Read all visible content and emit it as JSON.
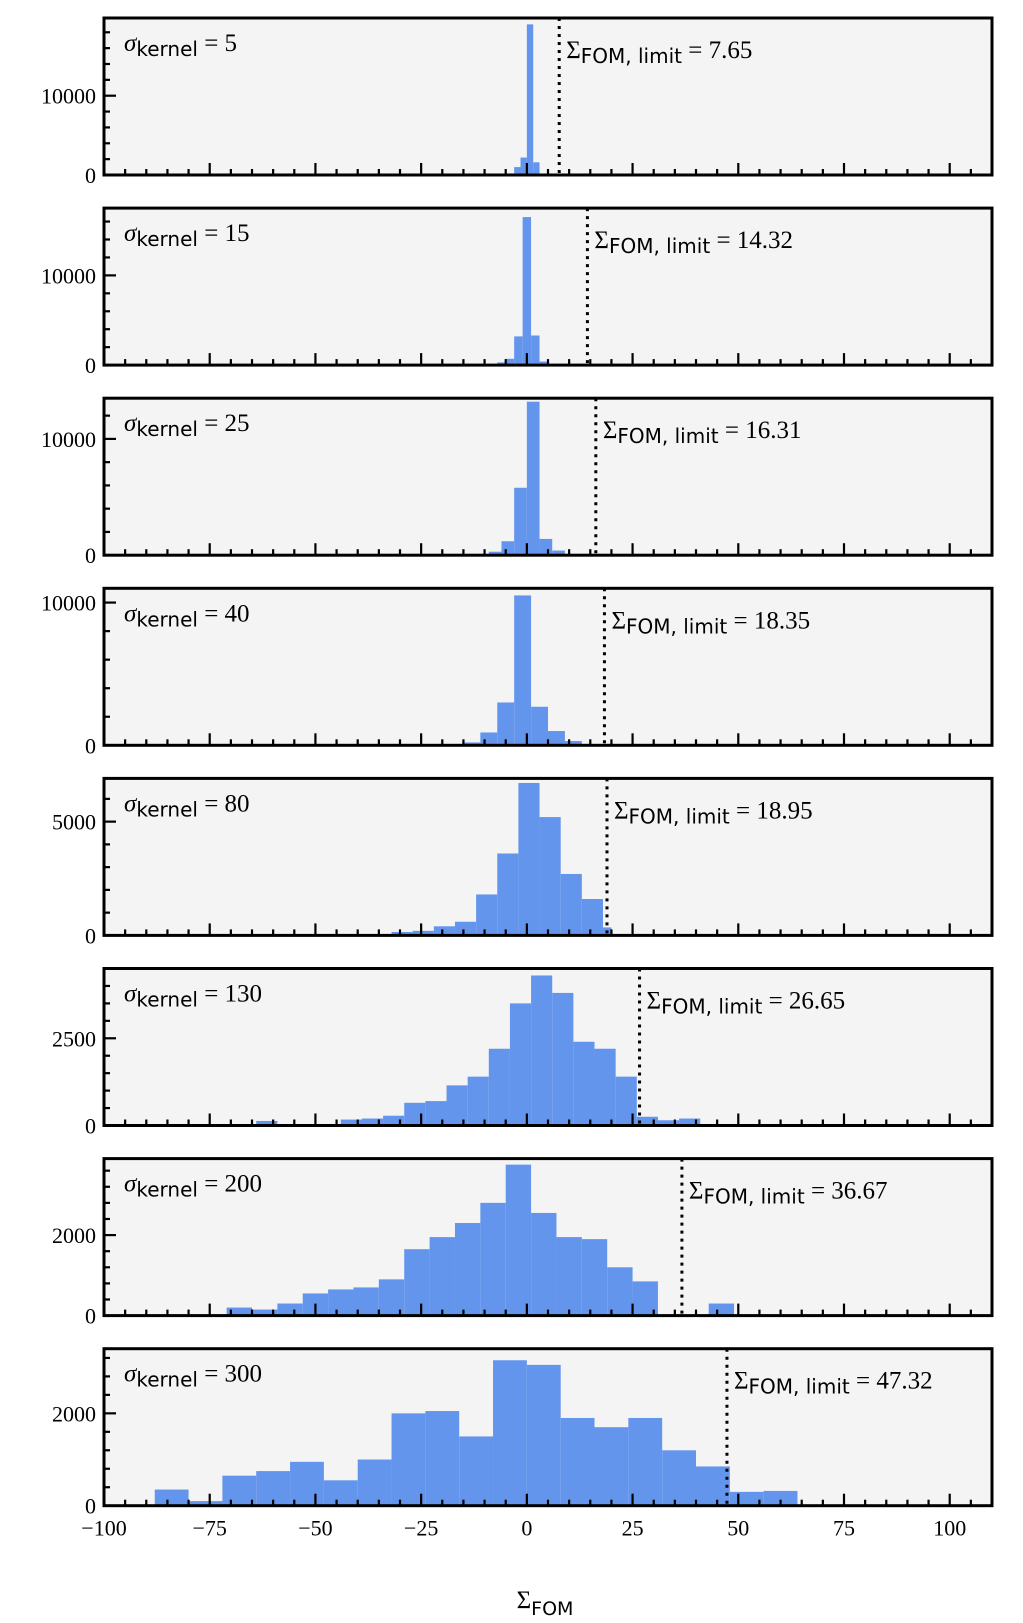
{
  "figure": {
    "xlabel_main": "Σ",
    "xlabel_sub": "FOM"
  },
  "colors": {
    "bar": "#6495ED",
    "panel_bg": "#F4F4F4",
    "frame": "#000000",
    "limit_line": "#000000"
  },
  "chart_data": [
    {
      "type": "bar",
      "kernel_label": {
        "sym": "σ",
        "sub": "kernel",
        "rest": " = 5"
      },
      "limit_label": {
        "sym": "Σ",
        "sub": "FOM, limit",
        "rest": " = 7.65"
      },
      "limit": 7.65,
      "xlim": [
        -100,
        110
      ],
      "ylim": [
        0,
        19800
      ],
      "yticks": [
        0,
        10000
      ],
      "bin_edges": [
        -3,
        -1.5,
        0,
        1.5,
        3
      ],
      "counts": [
        1000,
        2200,
        19000,
        1600
      ]
    },
    {
      "type": "bar",
      "kernel_label": {
        "sym": "σ",
        "sub": "kernel",
        "rest": " = 15"
      },
      "limit_label": {
        "sym": "Σ",
        "sub": "FOM, limit",
        "rest": " = 14.32"
      },
      "limit": 14.32,
      "xlim": [
        -100,
        110
      ],
      "ylim": [
        0,
        17500
      ],
      "yticks": [
        0,
        10000
      ],
      "bin_edges": [
        -7,
        -5,
        -3,
        -1,
        1,
        3,
        5,
        7
      ],
      "counts": [
        300,
        700,
        3200,
        16500,
        3300,
        400,
        100
      ]
    },
    {
      "type": "bar",
      "kernel_label": {
        "sym": "σ",
        "sub": "kernel",
        "rest": " = 25"
      },
      "limit_label": {
        "sym": "Σ",
        "sub": "FOM, limit",
        "rest": " = 16.31"
      },
      "limit": 16.31,
      "xlim": [
        -100,
        110
      ],
      "ylim": [
        0,
        13500
      ],
      "yticks": [
        0,
        10000
      ],
      "bin_edges": [
        -9,
        -6,
        -3,
        0,
        3,
        6,
        9
      ],
      "counts": [
        300,
        1200,
        5800,
        13200,
        1400,
        400
      ]
    },
    {
      "type": "bar",
      "kernel_label": {
        "sym": "σ",
        "sub": "kernel",
        "rest": " = 40"
      },
      "limit_label": {
        "sym": "Σ",
        "sub": "FOM, limit",
        "rest": " = 18.35"
      },
      "limit": 18.35,
      "xlim": [
        -100,
        110
      ],
      "ylim": [
        0,
        11000
      ],
      "yticks": [
        0,
        10000
      ],
      "bin_edges": [
        -15,
        -11,
        -7,
        -3,
        1,
        5,
        9,
        13
      ],
      "counts": [
        200,
        900,
        3000,
        10500,
        2700,
        1000,
        300
      ]
    },
    {
      "type": "bar",
      "kernel_label": {
        "sym": "σ",
        "sub": "kernel",
        "rest": " = 80"
      },
      "limit_label": {
        "sym": "Σ",
        "sub": "FOM, limit",
        "rest": " = 18.95"
      },
      "limit": 18.95,
      "xlim": [
        -100,
        110
      ],
      "ylim": [
        0,
        6900
      ],
      "yticks": [
        0,
        5000
      ],
      "bin_edges": [
        -32,
        -27,
        -22,
        -17,
        -12,
        -7,
        -2,
        3,
        8,
        13,
        18,
        20
      ],
      "counts": [
        150,
        200,
        400,
        600,
        1800,
        3600,
        6700,
        5200,
        2700,
        1600,
        350
      ]
    },
    {
      "type": "bar",
      "kernel_label": {
        "sym": "σ",
        "sub": "kernel",
        "rest": " = 130"
      },
      "limit_label": {
        "sym": "Σ",
        "sub": "FOM, limit",
        "rest": " = 26.65"
      },
      "limit": 26.65,
      "xlim": [
        -100,
        110
      ],
      "ylim": [
        0,
        4500
      ],
      "yticks": [
        0,
        2500
      ],
      "bin_edges": [
        -64,
        -59,
        -54,
        -49,
        -44,
        -39,
        -34,
        -29,
        -24,
        -19,
        -14,
        -9,
        -4,
        1,
        6,
        11,
        16,
        21,
        26,
        31,
        36,
        41
      ],
      "counts": [
        130,
        0,
        0,
        0,
        170,
        200,
        280,
        650,
        700,
        1150,
        1400,
        2200,
        3500,
        4300,
        3800,
        2400,
        2200,
        1400,
        250,
        150,
        200
      ]
    },
    {
      "type": "bar",
      "kernel_label": {
        "sym": "σ",
        "sub": "kernel",
        "rest": " = 200"
      },
      "limit_label": {
        "sym": "Σ",
        "sub": "FOM, limit",
        "rest": " = 36.67"
      },
      "limit": 36.67,
      "xlim": [
        -100,
        110
      ],
      "ylim": [
        0,
        3900
      ],
      "yticks": [
        0,
        2000
      ],
      "bin_edges": [
        -71,
        -65,
        -59,
        -53,
        -47,
        -41,
        -35,
        -29,
        -23,
        -17,
        -11,
        -5,
        1,
        7,
        13,
        19,
        25,
        31,
        37,
        43,
        49,
        52
      ],
      "counts": [
        200,
        150,
        300,
        550,
        650,
        700,
        900,
        1650,
        1950,
        2300,
        2800,
        3750,
        2550,
        1950,
        1900,
        1200,
        850,
        0,
        0,
        300,
        0
      ]
    },
    {
      "type": "bar",
      "kernel_label": {
        "sym": "σ",
        "sub": "kernel",
        "rest": " = 300"
      },
      "limit_label": {
        "sym": "Σ",
        "sub": "FOM, limit",
        "rest": " = 47.32"
      },
      "limit": 47.32,
      "xlim": [
        -100,
        110
      ],
      "ylim": [
        0,
        3400
      ],
      "yticks": [
        0,
        2000
      ],
      "xticks": [
        -100,
        -75,
        -50,
        -25,
        0,
        25,
        50,
        75,
        100
      ],
      "xticklabels": [
        "−100",
        "−75",
        "−50",
        "−25",
        "0",
        "25",
        "50",
        "75",
        "100"
      ],
      "bin_edges": [
        -88,
        -80,
        -72,
        -64,
        -56,
        -48,
        -40,
        -32,
        -24,
        -16,
        -8,
        0,
        8,
        16,
        24,
        32,
        40,
        48,
        56,
        64
      ],
      "counts": [
        350,
        100,
        650,
        750,
        950,
        550,
        1000,
        2000,
        2050,
        1500,
        3150,
        3050,
        1900,
        1700,
        1900,
        1200,
        850,
        300,
        320
      ]
    }
  ]
}
